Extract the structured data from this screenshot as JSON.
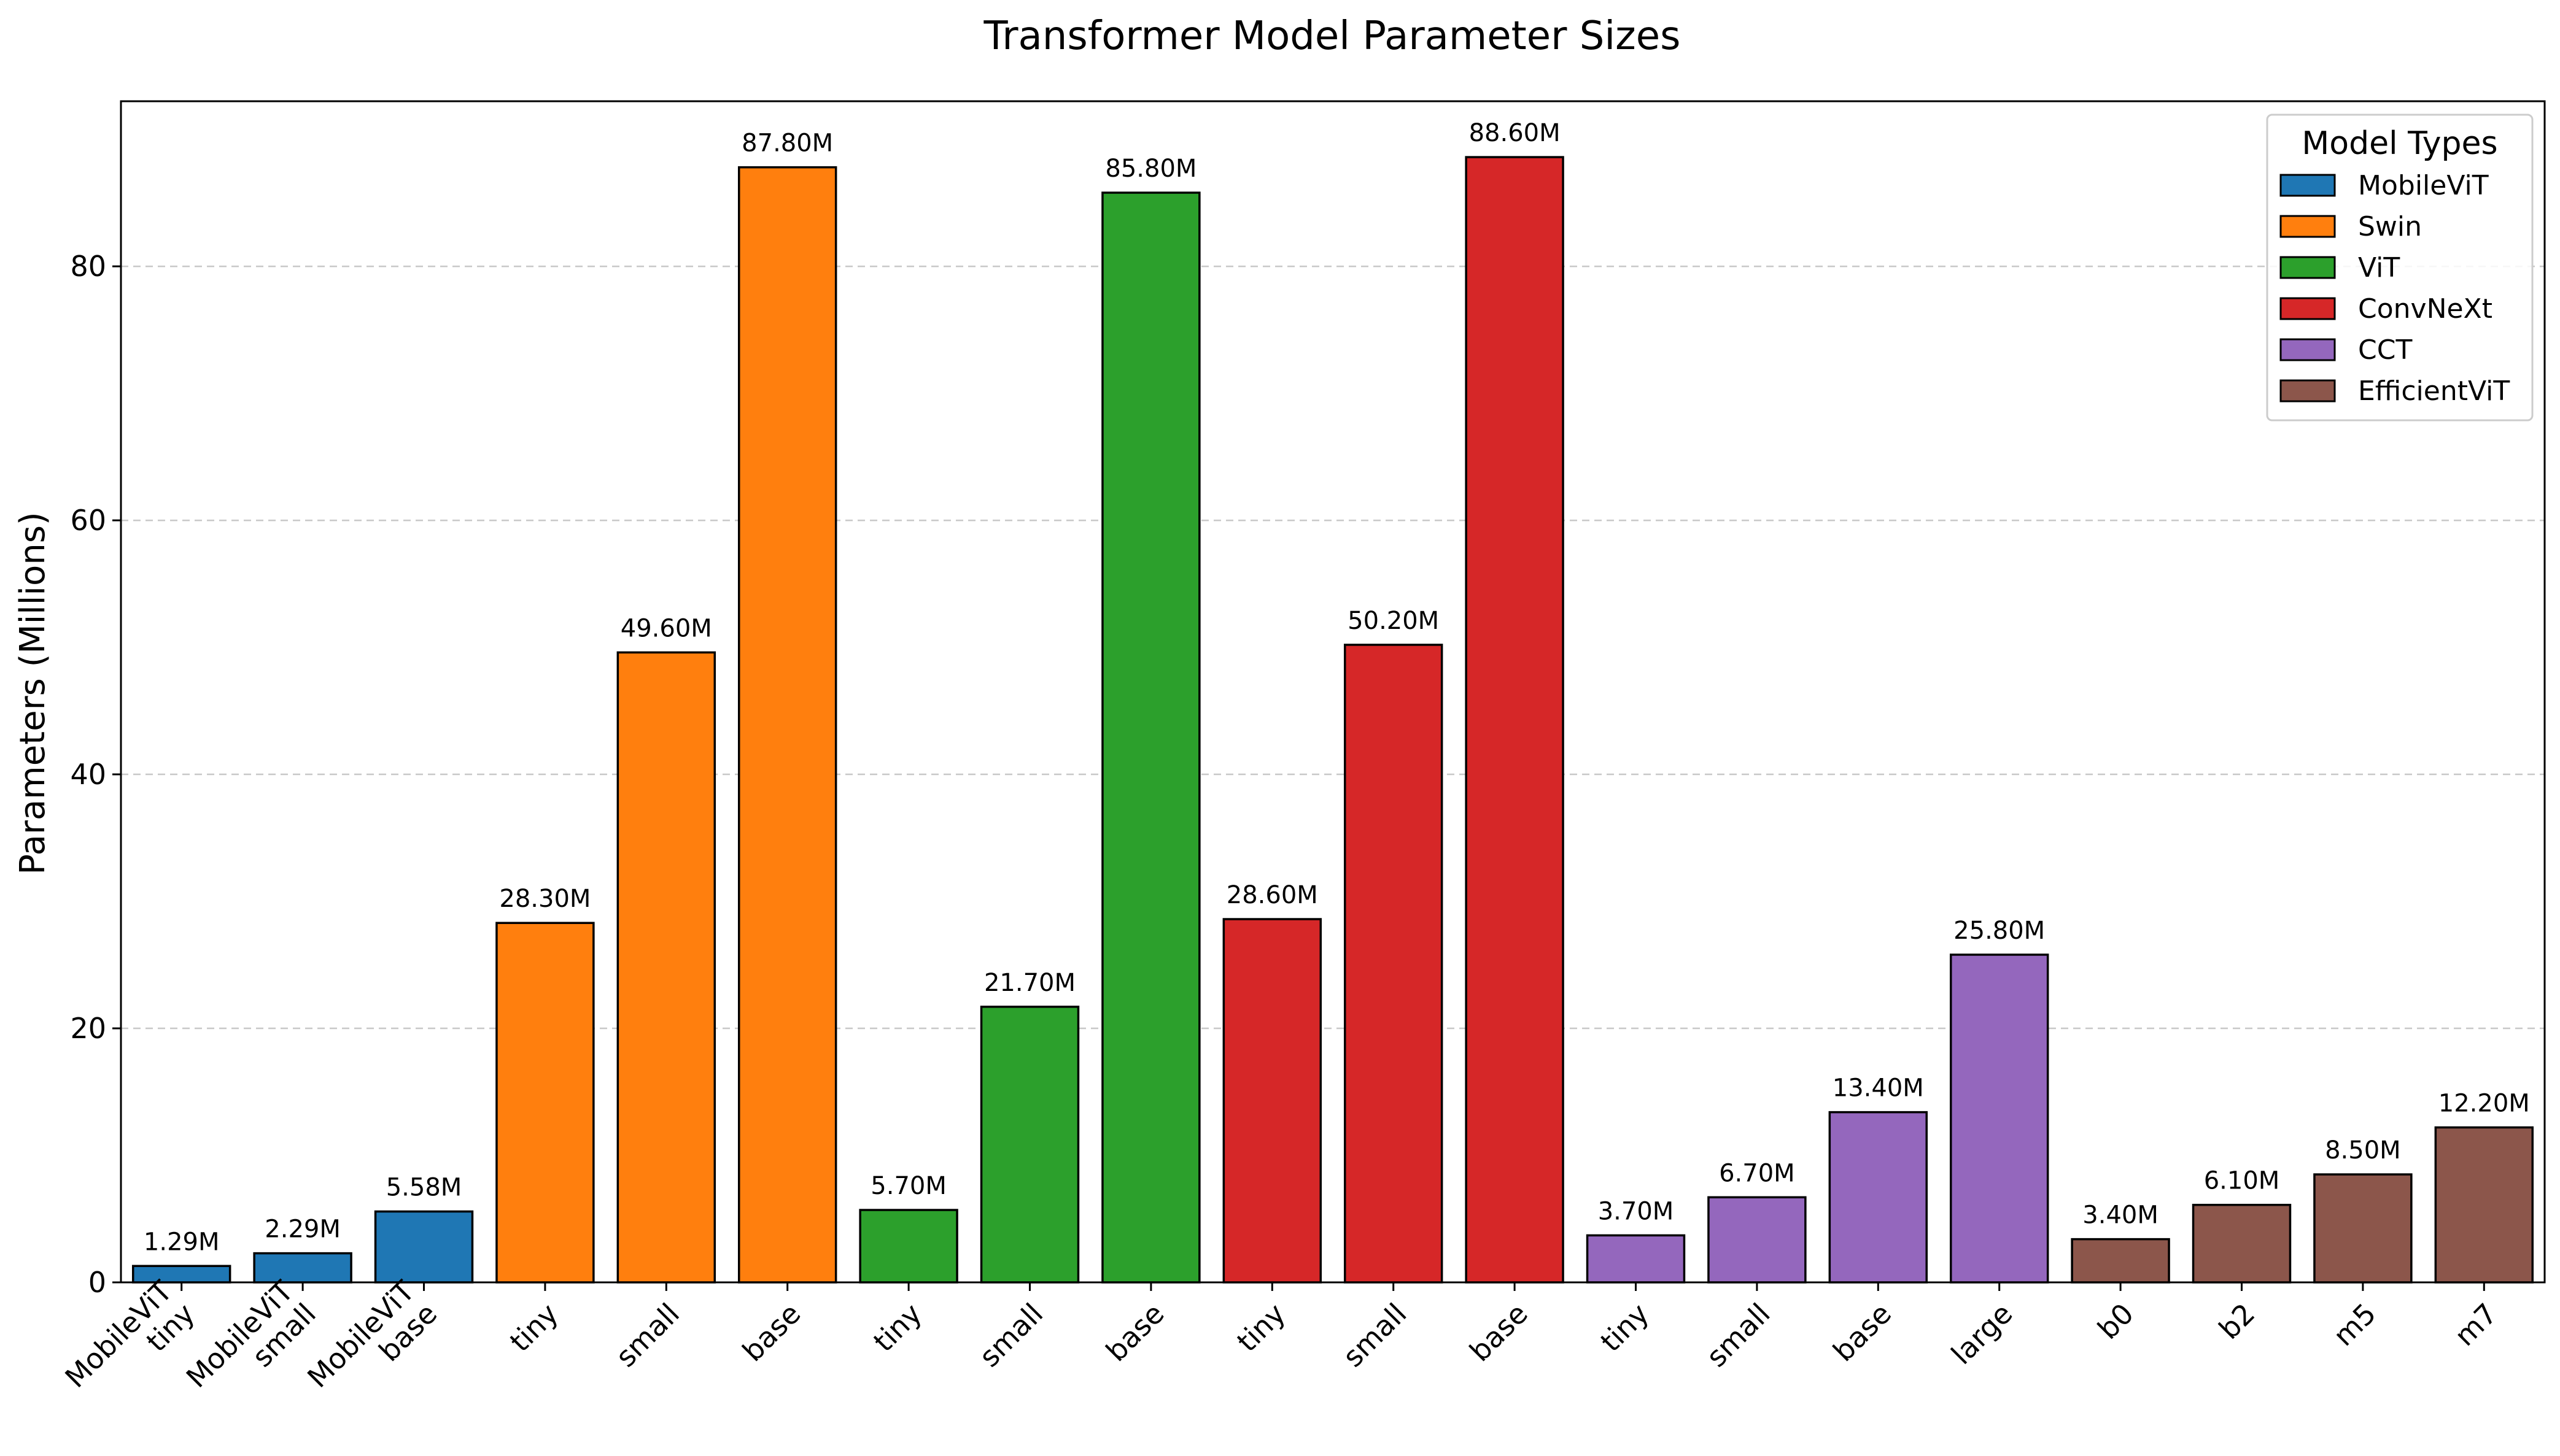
{
  "chart_data": {
    "type": "bar",
    "title": "Transformer Model Parameter Sizes",
    "xlabel": "",
    "ylabel": "Parameters (Millions)",
    "ylim": [
      0,
      93
    ],
    "yticks": [
      0,
      20,
      40,
      60,
      80
    ],
    "grid": "y-dashed",
    "legend_title": "Model Types",
    "legend_position": "top-right",
    "groups": [
      {
        "name": "MobileViT",
        "color": "#1f77b4"
      },
      {
        "name": "Swin",
        "color": "#ff7f0e"
      },
      {
        "name": "ViT",
        "color": "#2ca02c"
      },
      {
        "name": "ConvNeXt",
        "color": "#d62728"
      },
      {
        "name": "CCT",
        "color": "#9467bd"
      },
      {
        "name": "EfficientViT",
        "color": "#8c564b"
      }
    ],
    "bars": [
      {
        "label": [
          "MobileViT",
          "tiny"
        ],
        "group": 0,
        "value": 1.29,
        "text": "1.29M"
      },
      {
        "label": [
          "MobileViT",
          "small"
        ],
        "group": 0,
        "value": 2.29,
        "text": "2.29M"
      },
      {
        "label": [
          "MobileViT",
          "base"
        ],
        "group": 0,
        "value": 5.58,
        "text": "5.58M"
      },
      {
        "label": [
          "tiny"
        ],
        "group": 1,
        "value": 28.3,
        "text": "28.30M"
      },
      {
        "label": [
          "small"
        ],
        "group": 1,
        "value": 49.6,
        "text": "49.60M"
      },
      {
        "label": [
          "base"
        ],
        "group": 1,
        "value": 87.8,
        "text": "87.80M"
      },
      {
        "label": [
          "tiny"
        ],
        "group": 2,
        "value": 5.7,
        "text": "5.70M"
      },
      {
        "label": [
          "small"
        ],
        "group": 2,
        "value": 21.7,
        "text": "21.70M"
      },
      {
        "label": [
          "base"
        ],
        "group": 2,
        "value": 85.8,
        "text": "85.80M"
      },
      {
        "label": [
          "tiny"
        ],
        "group": 3,
        "value": 28.6,
        "text": "28.60M"
      },
      {
        "label": [
          "small"
        ],
        "group": 3,
        "value": 50.2,
        "text": "50.20M"
      },
      {
        "label": [
          "base"
        ],
        "group": 3,
        "value": 88.6,
        "text": "88.60M"
      },
      {
        "label": [
          "tiny"
        ],
        "group": 4,
        "value": 3.7,
        "text": "3.70M"
      },
      {
        "label": [
          "small"
        ],
        "group": 4,
        "value": 6.7,
        "text": "6.70M"
      },
      {
        "label": [
          "base"
        ],
        "group": 4,
        "value": 13.4,
        "text": "13.40M"
      },
      {
        "label": [
          "large"
        ],
        "group": 4,
        "value": 25.8,
        "text": "25.80M"
      },
      {
        "label": [
          "b0"
        ],
        "group": 5,
        "value": 3.4,
        "text": "3.40M"
      },
      {
        "label": [
          "b2"
        ],
        "group": 5,
        "value": 6.1,
        "text": "6.10M"
      },
      {
        "label": [
          "m5"
        ],
        "group": 5,
        "value": 8.5,
        "text": "8.50M"
      },
      {
        "label": [
          "m7"
        ],
        "group": 5,
        "value": 12.2,
        "text": "12.20M"
      }
    ]
  }
}
